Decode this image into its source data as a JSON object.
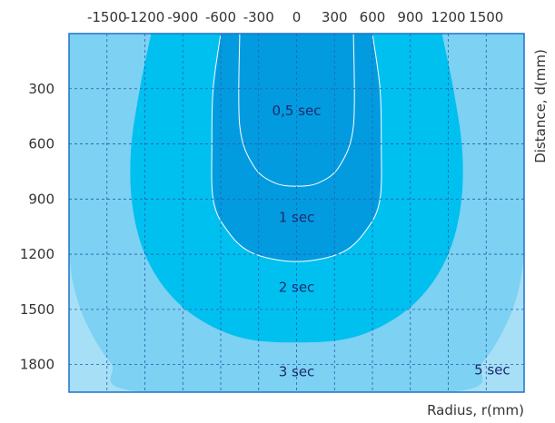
{
  "chart_data": {
    "type": "area",
    "title": "",
    "xlabel": "Radius, r(mm)",
    "ylabel": "Distance, d(mm)",
    "xlim": [
      -1800,
      1800
    ],
    "ylim": [
      0,
      1950
    ],
    "y_inverted": true,
    "x_ticks": [
      -1500,
      -1200,
      -900,
      -600,
      -300,
      0,
      300,
      600,
      900,
      1200,
      1500
    ],
    "y_ticks": [
      300,
      600,
      900,
      1200,
      1500,
      1800
    ],
    "x_tick_labels": [
      "-1500",
      "-1200",
      "-900",
      "-600",
      "-300",
      "0",
      "300",
      "600",
      "900",
      "1200",
      "1500"
    ],
    "y_tick_labels": [
      "300",
      "600",
      "900",
      "1200",
      "1500",
      "1800"
    ],
    "x_axis_position": "top",
    "y_axis_position": "left",
    "grid": true,
    "series": [
      {
        "name": "5 sec",
        "color": "#a6dff6",
        "boundary": [
          [
            -1800,
            0
          ],
          [
            1800,
            0
          ],
          [
            1800,
            1950
          ],
          [
            -1800,
            1950
          ]
        ]
      },
      {
        "name": "3 sec",
        "color": "#7dd1f3",
        "boundary": [
          [
            1800,
            0
          ],
          [
            1800,
            700
          ],
          [
            1800,
            1100
          ],
          [
            1770,
            1350
          ],
          [
            1660,
            1580
          ],
          [
            1470,
            1790
          ],
          [
            1200,
            1950
          ],
          [
            -1200,
            1950
          ],
          [
            -1470,
            1790
          ],
          [
            -1660,
            1580
          ],
          [
            -1770,
            1350
          ],
          [
            -1800,
            1100
          ],
          [
            -1800,
            700
          ],
          [
            -1800,
            0
          ]
        ]
      },
      {
        "name": "2 sec",
        "color": "#00c0f0",
        "boundary": [
          [
            1150,
            0
          ],
          [
            1240,
            300
          ],
          [
            1310,
            630
          ],
          [
            1300,
            930
          ],
          [
            1200,
            1200
          ],
          [
            1000,
            1420
          ],
          [
            730,
            1570
          ],
          [
            400,
            1660
          ],
          [
            0,
            1680
          ],
          [
            -400,
            1660
          ],
          [
            -730,
            1570
          ],
          [
            -1000,
            1420
          ],
          [
            -1200,
            1200
          ],
          [
            -1300,
            930
          ],
          [
            -1310,
            630
          ],
          [
            -1240,
            300
          ],
          [
            -1150,
            0
          ]
        ]
      },
      {
        "name": "1 sec",
        "color": "#039bdf",
        "boundary": [
          [
            600,
            0
          ],
          [
            660,
            300
          ],
          [
            670,
            600
          ],
          [
            660,
            900
          ],
          [
            560,
            1060
          ],
          [
            360,
            1190
          ],
          [
            0,
            1240
          ],
          [
            -360,
            1190
          ],
          [
            -560,
            1060
          ],
          [
            -660,
            900
          ],
          [
            -670,
            600
          ],
          [
            -660,
            300
          ],
          [
            -600,
            0
          ]
        ]
      },
      {
        "name": "0,5 sec",
        "color": "#039bdf",
        "boundary": [
          [
            450,
            0
          ],
          [
            450,
            500
          ],
          [
            340,
            720
          ],
          [
            180,
            810
          ],
          [
            0,
            830
          ],
          [
            -180,
            810
          ],
          [
            -340,
            720
          ],
          [
            -450,
            500
          ],
          [
            -450,
            0
          ]
        ]
      }
    ],
    "annotations": [
      {
        "text": "0,5 sec",
        "x": 0,
        "y": 420,
        "anchor": "middle"
      },
      {
        "text": "1 sec",
        "x": 0,
        "y": 1000,
        "anchor": "middle"
      },
      {
        "text": "2 sec",
        "x": 0,
        "y": 1380,
        "anchor": "middle"
      },
      {
        "text": "3 sec",
        "x": 0,
        "y": 1840,
        "anchor": "middle"
      },
      {
        "text": "5 sec",
        "x": 1690,
        "y": 1830,
        "anchor": "end"
      }
    ]
  }
}
